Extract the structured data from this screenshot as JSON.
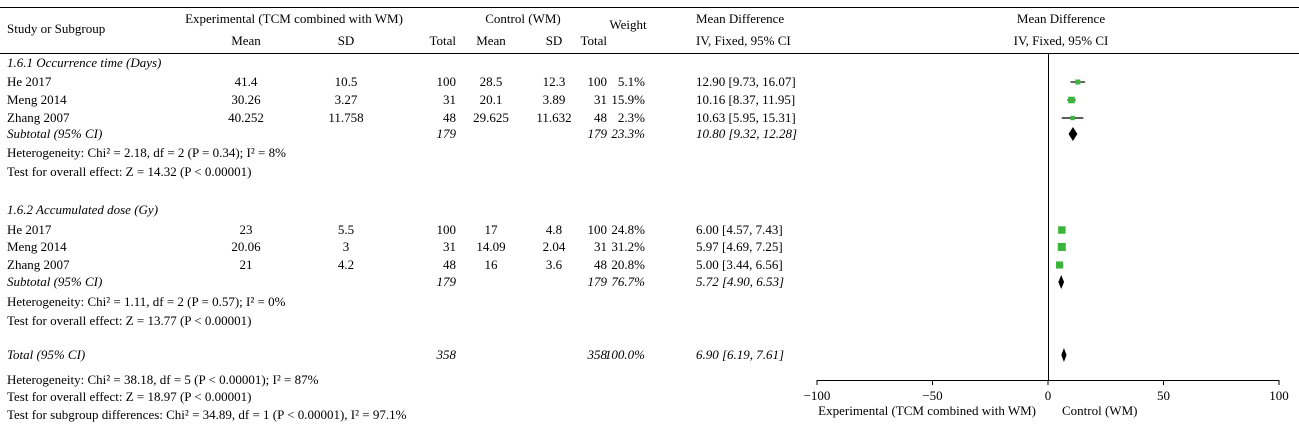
{
  "header": {
    "study_col": "Study or Subgroup",
    "experimental": "Experimental (TCM combined with WM)",
    "control": "Control (WM)",
    "mean": "Mean",
    "sd": "SD",
    "total": "Total",
    "weight": "Weight",
    "md": "Mean Difference",
    "method": "IV, Fixed, 95% CI",
    "plot_md": "Mean Difference",
    "plot_method": "IV, Fixed, 95% CI"
  },
  "chart_data": {
    "type": "forest",
    "xlim": [
      -100,
      100
    ],
    "x_ticks": [
      "−100",
      "−50",
      "0",
      "50",
      "100"
    ],
    "x_tick_values": [
      -100,
      -50,
      0,
      50,
      100
    ],
    "favours_left": "Experimental (TCM combined with WM)",
    "favours_right": "Control (WM)",
    "square_color": "#3cb53c",
    "subgroups": [
      {
        "title": "1.6.1 Occurrence time (Days)",
        "studies": [
          {
            "name": "He 2017",
            "e_mean": "41.4",
            "e_sd": "10.5",
            "e_total": "100",
            "c_mean": "28.5",
            "c_sd": "12.3",
            "c_total": "100",
            "weight": "5.1%",
            "ci_text": "12.90 [9.73, 16.07]",
            "md": 12.9,
            "lo": 9.73,
            "hi": 16.07,
            "w": 5.1
          },
          {
            "name": "Meng 2014",
            "e_mean": "30.26",
            "e_sd": "3.27",
            "e_total": "31",
            "c_mean": "20.1",
            "c_sd": "3.89",
            "c_total": "31",
            "weight": "15.9%",
            "ci_text": "10.16 [8.37, 11.95]",
            "md": 10.16,
            "lo": 8.37,
            "hi": 11.95,
            "w": 15.9
          },
          {
            "name": "Zhang 2007",
            "e_mean": "40.252",
            "e_sd": "11.758",
            "e_total": "48",
            "c_mean": "29.625",
            "c_sd": "11.632",
            "c_total": "48",
            "weight": "2.3%",
            "ci_text": "10.63 [5.95, 15.31]",
            "md": 10.63,
            "lo": 5.95,
            "hi": 15.31,
            "w": 2.3
          }
        ],
        "subtotal": {
          "label": "Subtotal (95% CI)",
          "e_total": "179",
          "c_total": "179",
          "weight": "23.3%",
          "ci_text": "10.80 [9.32, 12.28]",
          "md": 10.8,
          "lo": 9.32,
          "hi": 12.28
        },
        "heterogeneity": "Heterogeneity: Chi² = 2.18, df = 2 (P = 0.34); I² = 8%",
        "overall": "Test for overall effect: Z = 14.32 (P < 0.00001)"
      },
      {
        "title": "1.6.2 Accumulated dose (Gy)",
        "studies": [
          {
            "name": "He 2017",
            "e_mean": "23",
            "e_sd": "5.5",
            "e_total": "100",
            "c_mean": "17",
            "c_sd": "4.8",
            "c_total": "100",
            "weight": "24.8%",
            "ci_text": "6.00 [4.57, 7.43]",
            "md": 6.0,
            "lo": 4.57,
            "hi": 7.43,
            "w": 24.8
          },
          {
            "name": "Meng 2014",
            "e_mean": "20.06",
            "e_sd": "3",
            "e_total": "31",
            "c_mean": "14.09",
            "c_sd": "2.04",
            "c_total": "31",
            "weight": "31.2%",
            "ci_text": "5.97 [4.69, 7.25]",
            "md": 5.97,
            "lo": 4.69,
            "hi": 7.25,
            "w": 31.2
          },
          {
            "name": "Zhang 2007",
            "e_mean": "21",
            "e_sd": "4.2",
            "e_total": "48",
            "c_mean": "16",
            "c_sd": "3.6",
            "c_total": "48",
            "weight": "20.8%",
            "ci_text": "5.00 [3.44, 6.56]",
            "md": 5.0,
            "lo": 3.44,
            "hi": 6.56,
            "w": 20.8
          }
        ],
        "subtotal": {
          "label": "Subtotal (95% CI)",
          "e_total": "179",
          "c_total": "179",
          "weight": "76.7%",
          "ci_text": "5.72 [4.90, 6.53]",
          "md": 5.72,
          "lo": 4.9,
          "hi": 6.53
        },
        "heterogeneity": "Heterogeneity: Chi² = 1.11, df = 2 (P = 0.57); I² = 0%",
        "overall": "Test for overall effect: Z = 13.77 (P < 0.00001)"
      }
    ],
    "total": {
      "label": "Total (95% CI)",
      "e_total": "358",
      "c_total": "358",
      "weight": "100.0%",
      "ci_text": "6.90 [6.19, 7.61]",
      "md": 6.9,
      "lo": 6.19,
      "hi": 7.61,
      "heterogeneity": "Heterogeneity: Chi² = 38.18, df = 5 (P < 0.00001); I² = 87%",
      "overall": "Test for overall effect: Z = 18.97 (P < 0.00001)",
      "subgroup_diff": "Test for subgroup differences: Chi² = 34.89, df = 1 (P < 0.00001), I² = 97.1%"
    }
  }
}
